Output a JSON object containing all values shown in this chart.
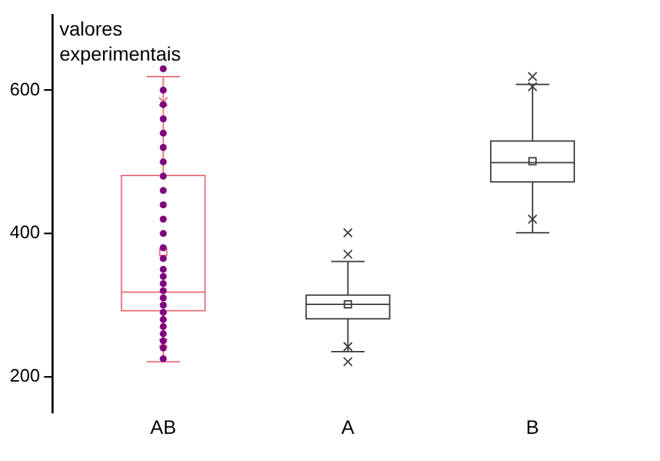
{
  "chart_data": {
    "type": "box",
    "ylabel": "valores experimentais",
    "categories": [
      "AB",
      "A",
      "B"
    ],
    "colors": [
      "#e8707a",
      "#404040",
      "#404040"
    ],
    "boxes": [
      {
        "low": 221,
        "q1": 292,
        "median": 318,
        "q3": 481,
        "high": 619,
        "mean": 374,
        "outliers": [
          247,
          584
        ]
      },
      {
        "low": 235,
        "q1": 281,
        "median": 301,
        "q3": 314,
        "high": 361,
        "mean": 301,
        "outliers": [
          221,
          242,
          371,
          401
        ]
      },
      {
        "low": 401,
        "q1": 472,
        "median": 499,
        "q3": 529,
        "high": 608,
        "mean": 501,
        "outliers": [
          420,
          605,
          619
        ]
      }
    ],
    "series": [
      {
        "type": "scatter",
        "color": "#800080",
        "marker": "circle",
        "x": [
          "AB",
          "AB",
          "AB",
          "AB",
          "AB",
          "AB",
          "AB",
          "AB",
          "AB",
          "AB",
          "AB",
          "AB",
          "AB",
          "AB",
          "AB",
          "AB",
          "AB",
          "AB",
          "AB",
          "AB",
          "AB",
          "AB",
          "AB",
          "AB",
          "AB",
          "AB",
          "AB"
        ],
        "values": [
          225,
          240,
          250,
          260,
          270,
          280,
          290,
          300,
          310,
          320,
          330,
          340,
          350,
          365,
          380,
          400,
          420,
          440,
          460,
          480,
          500,
          520,
          540,
          560,
          580,
          600,
          630
        ]
      }
    ],
    "ylim": [
      150,
      705
    ],
    "yticks": [
      200,
      400,
      600
    ],
    "grid": false,
    "legend": false,
    "marker": "cross"
  }
}
